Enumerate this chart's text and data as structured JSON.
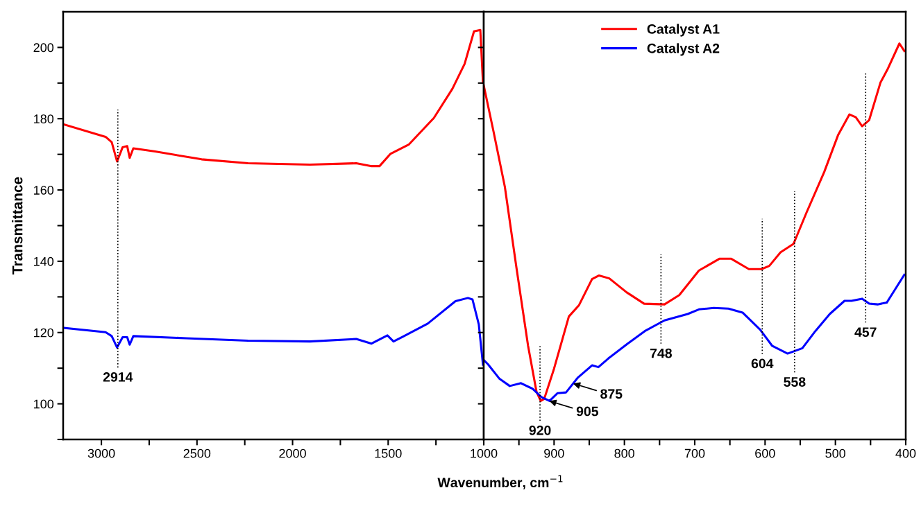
{
  "chart_data": [
    {
      "type": "line",
      "ylabel": "Transmittance",
      "xlim": [
        3200,
        1000
      ],
      "xticks": [
        3000,
        {
          "value": 2750,
          "label": null
        },
        2500,
        {
          "value": 2250,
          "label": null
        },
        2000,
        {
          "value": 1750,
          "label": null
        },
        1500,
        {
          "value": 1250,
          "label": null
        },
        1000
      ],
      "ylim": [
        90,
        210
      ],
      "yticks": [
        {
          "value": 90,
          "label": null
        },
        100,
        {
          "value": 110,
          "label": null
        },
        120,
        {
          "value": 130,
          "label": null
        },
        140,
        {
          "value": 150,
          "label": null
        },
        160,
        {
          "value": 170,
          "label": null
        },
        180,
        {
          "value": 190,
          "label": null
        },
        200
      ],
      "series": [
        {
          "color": "#ff0000",
          "x": [
            3197,
            2978,
            2946,
            2918,
            2889,
            2865,
            2852,
            2833,
            2719,
            2476,
            2233,
            1909,
            1667,
            1587,
            1545,
            1489,
            1391,
            1261,
            1164,
            1100,
            1051,
            1018,
            1004
          ],
          "values": [
            178.4,
            174.9,
            173.4,
            168.0,
            172.0,
            172.3,
            169.0,
            171.7,
            170.8,
            168.6,
            167.5,
            167.1,
            167.5,
            166.7,
            166.7,
            170.1,
            172.8,
            180.2,
            188.4,
            195.4,
            204.5,
            204.9,
            190.1
          ]
        },
        {
          "color": "#0000ff",
          "x": [
            3197,
            2978,
            2946,
            2918,
            2889,
            2865,
            2852,
            2833,
            2557,
            2233,
            1909,
            1667,
            1587,
            1504,
            1472,
            1424,
            1293,
            1148,
            1083,
            1059,
            1026,
            1004
          ],
          "values": [
            121.3,
            120.1,
            119.0,
            115.8,
            118.7,
            118.7,
            116.6,
            119.0,
            118.4,
            117.7,
            117.5,
            118.2,
            116.9,
            119.2,
            117.5,
            118.8,
            122.5,
            128.8,
            129.7,
            129.3,
            122.3,
            111.0
          ]
        }
      ],
      "ref_lines": [
        {
          "axis": "x",
          "value": 2914,
          "line_style": "dotted",
          "label": "2914"
        }
      ]
    },
    {
      "type": "line",
      "xlabel": "Wavenumber, cm$^{−1}$",
      "legend": "top",
      "tick_labels": "x",
      "xlim": [
        1000,
        400
      ],
      "xticks": [
        {
          "value": 1000,
          "label": null
        },
        {
          "value": 950,
          "label": null
        },
        900,
        {
          "value": 850,
          "label": null
        },
        800,
        {
          "value": 750,
          "label": null
        },
        700,
        {
          "value": 650,
          "label": null
        },
        600,
        {
          "value": 550,
          "label": null
        },
        500,
        {
          "value": 450,
          "label": null
        },
        400
      ],
      "ylim": [
        90,
        210
      ],
      "yticks": [
        {
          "value": 90,
          "label": null
        },
        {
          "value": 100,
          "label": null
        },
        {
          "value": 110,
          "label": null
        },
        {
          "value": 120,
          "label": null
        },
        {
          "value": 130,
          "label": null
        },
        {
          "value": 140,
          "label": null
        },
        {
          "value": 150,
          "label": null
        },
        {
          "value": 160,
          "label": null
        },
        {
          "value": 170,
          "label": null
        },
        {
          "value": 180,
          "label": null
        },
        {
          "value": 190,
          "label": null
        },
        {
          "value": 200,
          "label": null
        }
      ],
      "series": [
        {
          "name": "Catalyst A1",
          "color": "#ff0000",
          "x": [
            1000,
            986,
            970,
            953.5,
            937,
            925,
            919,
            914,
            900,
            879,
            864.5,
            846,
            836,
            821.5,
            797,
            772,
            743,
            722,
            694,
            665,
            648,
            623,
            605,
            594,
            578,
            559.5,
            541,
            516,
            496,
            480,
            471,
            462,
            452,
            436,
            426,
            409,
            402
          ],
          "values": [
            189.3,
            176.3,
            160.9,
            138.2,
            116.3,
            103.4,
            100.8,
            101.4,
            109.9,
            124.5,
            127.7,
            135.0,
            136.0,
            135.2,
            131.3,
            128.1,
            127.9,
            130.5,
            137.4,
            140.7,
            140.7,
            137.8,
            137.8,
            138.7,
            142.5,
            144.9,
            153.7,
            165.0,
            175.5,
            181.2,
            180.4,
            177.9,
            179.6,
            190.1,
            193.8,
            201.1,
            199.0
          ]
        },
        {
          "name": "Catalyst A2",
          "color": "#0000ff",
          "x": [
            1000,
            994,
            977.5,
            963,
            947,
            930.5,
            918,
            906.5,
            895,
            883,
            866,
            846,
            837,
            823,
            796,
            771,
            743,
            710,
            694,
            673,
            652,
            632,
            607,
            590,
            568,
            547,
            528.5,
            508,
            487,
            477,
            462,
            452,
            440,
            427,
            419,
            402
          ],
          "values": [
            112.3,
            111.1,
            107.0,
            105.0,
            105.8,
            104.2,
            101.9,
            100.8,
            103.0,
            103.2,
            107.4,
            110.8,
            110.3,
            112.7,
            116.8,
            120.4,
            123.4,
            125.2,
            126.5,
            126.9,
            126.7,
            125.6,
            120.8,
            116.3,
            114.1,
            115.6,
            120.4,
            125.2,
            128.9,
            128.9,
            129.5,
            128.1,
            127.9,
            128.4,
            130.9,
            136.2
          ]
        }
      ],
      "ref_lines": [
        {
          "axis": "x",
          "value": 920,
          "line_style": "dotted",
          "label": "920"
        },
        {
          "axis": "x",
          "value": 748,
          "line_style": "dotted",
          "label": "748"
        },
        {
          "axis": "x",
          "value": 604,
          "line_style": "dotted",
          "label": "604"
        },
        {
          "axis": "x",
          "value": 558,
          "line_style": "dotted",
          "label": "558"
        },
        {
          "axis": "x",
          "value": 457,
          "line_style": "dotted",
          "label": "457"
        }
      ],
      "annotations": [
        {
          "text": "905",
          "x": 907,
          "y": 100.8
        },
        {
          "text": "875",
          "x": 873,
          "y": 105.7
        }
      ]
    }
  ]
}
